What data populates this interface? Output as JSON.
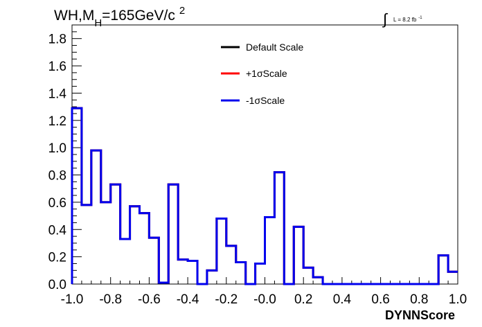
{
  "chart_data": {
    "type": "histogram",
    "title_main": "WH,M",
    "title_sub": "H",
    "title_rest": "=165GeV/c",
    "title_sup": "2",
    "lumi_label": "L = 8.2 fb",
    "lumi_sup": "-1",
    "xlabel": "DYNNScore",
    "xlim": [
      -1.0,
      1.0
    ],
    "ylim": [
      0.0,
      1.9
    ],
    "x_tick_labels": [
      "-1.0",
      "-0.8",
      "-0.6",
      "-0.4",
      "-0.2",
      "-0.0",
      "0.2",
      "0.4",
      "0.6",
      "0.8",
      "1.0"
    ],
    "y_tick_labels": [
      "0.0",
      "0.2",
      "0.4",
      "0.6",
      "0.8",
      "1.0",
      "1.2",
      "1.4",
      "1.6",
      "1.8"
    ],
    "bin_edges": [
      -1.0,
      -0.95,
      -0.9,
      -0.85,
      -0.8,
      -0.75,
      -0.7,
      -0.65,
      -0.6,
      -0.55,
      -0.5,
      -0.45,
      -0.4,
      -0.35,
      -0.3,
      -0.25,
      -0.2,
      -0.15,
      -0.1,
      -0.05,
      0.0,
      0.05,
      0.1,
      0.15,
      0.2,
      0.25,
      0.3,
      0.35,
      0.4,
      0.45,
      0.5,
      0.55,
      0.6,
      0.65,
      0.7,
      0.75,
      0.8,
      0.85,
      0.9,
      0.95,
      1.0
    ],
    "series": [
      {
        "name": "Default Scale",
        "color": "#000000",
        "values": [
          1.29,
          0.58,
          0.98,
          0.6,
          0.73,
          0.33,
          0.57,
          0.52,
          0.34,
          0.01,
          0.73,
          0.18,
          0.17,
          0.0,
          0.1,
          0.48,
          0.28,
          0.16,
          0.0,
          0.15,
          0.49,
          0.82,
          0.0,
          0.42,
          0.12,
          0.05,
          0.0,
          0.0,
          0.0,
          0.0,
          0.0,
          0.0,
          0.0,
          0.0,
          0.0,
          0.0,
          0.0,
          0.0,
          0.21,
          0.09
        ]
      },
      {
        "name": "+1σScale",
        "color": "#ff0000",
        "values": [
          1.29,
          0.58,
          0.98,
          0.6,
          0.73,
          0.33,
          0.57,
          0.52,
          0.34,
          0.01,
          0.73,
          0.18,
          0.17,
          0.0,
          0.1,
          0.48,
          0.28,
          0.16,
          0.0,
          0.15,
          0.49,
          0.82,
          0.0,
          0.42,
          0.12,
          0.05,
          0.0,
          0.0,
          0.0,
          0.0,
          0.0,
          0.0,
          0.0,
          0.0,
          0.0,
          0.0,
          0.0,
          0.0,
          0.21,
          0.09
        ]
      },
      {
        "name": "-1σScale",
        "color": "#0000ee",
        "values": [
          1.29,
          0.58,
          0.98,
          0.6,
          0.73,
          0.33,
          0.57,
          0.52,
          0.34,
          0.01,
          0.73,
          0.18,
          0.17,
          0.0,
          0.1,
          0.48,
          0.28,
          0.16,
          0.0,
          0.15,
          0.49,
          0.82,
          0.0,
          0.42,
          0.12,
          0.05,
          0.0,
          0.0,
          0.0,
          0.0,
          0.0,
          0.0,
          0.0,
          0.0,
          0.0,
          0.0,
          0.0,
          0.0,
          0.21,
          0.09
        ]
      }
    ],
    "legend_position": "top-center",
    "grid": false
  }
}
